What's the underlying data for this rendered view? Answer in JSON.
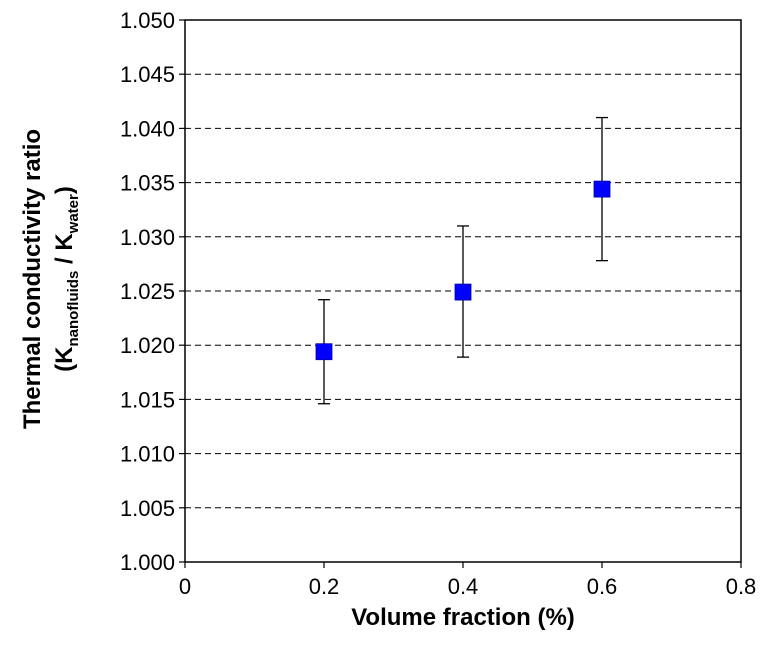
{
  "chart_data": {
    "type": "scatter",
    "xlabel": "Volume fraction (%)",
    "ylabel_line1": "Thermal conductivity ratio",
    "ylabel_line2": {
      "open": "(K",
      "sub1": "nanofluids",
      "mid": " / K",
      "sub2": "water",
      "close": ")"
    },
    "xlim": [
      0,
      0.8
    ],
    "ylim": [
      1.0,
      1.05
    ],
    "x_ticks": [
      "0",
      "0.2",
      "0.4",
      "0.6",
      "0.8"
    ],
    "x_tick_values": [
      0,
      0.2,
      0.4,
      0.6,
      0.8
    ],
    "y_ticks": [
      "1.000",
      "1.005",
      "1.010",
      "1.015",
      "1.020",
      "1.025",
      "1.030",
      "1.035",
      "1.040",
      "1.045",
      "1.050"
    ],
    "y_tick_values": [
      1.0,
      1.005,
      1.01,
      1.015,
      1.02,
      1.025,
      1.03,
      1.035,
      1.04,
      1.045,
      1.05
    ],
    "grid": "horizontal dashed",
    "marker_color": "#0000ff",
    "series": [
      {
        "points": [
          {
            "x": 0.2,
            "y": 1.0194,
            "err_low": 1.0146,
            "err_high": 1.0242
          },
          {
            "x": 0.4,
            "y": 1.0249,
            "err_low": 1.0189,
            "err_high": 1.031
          },
          {
            "x": 0.6,
            "y": 1.0344,
            "err_low": 1.0278,
            "err_high": 1.041
          }
        ]
      }
    ]
  }
}
